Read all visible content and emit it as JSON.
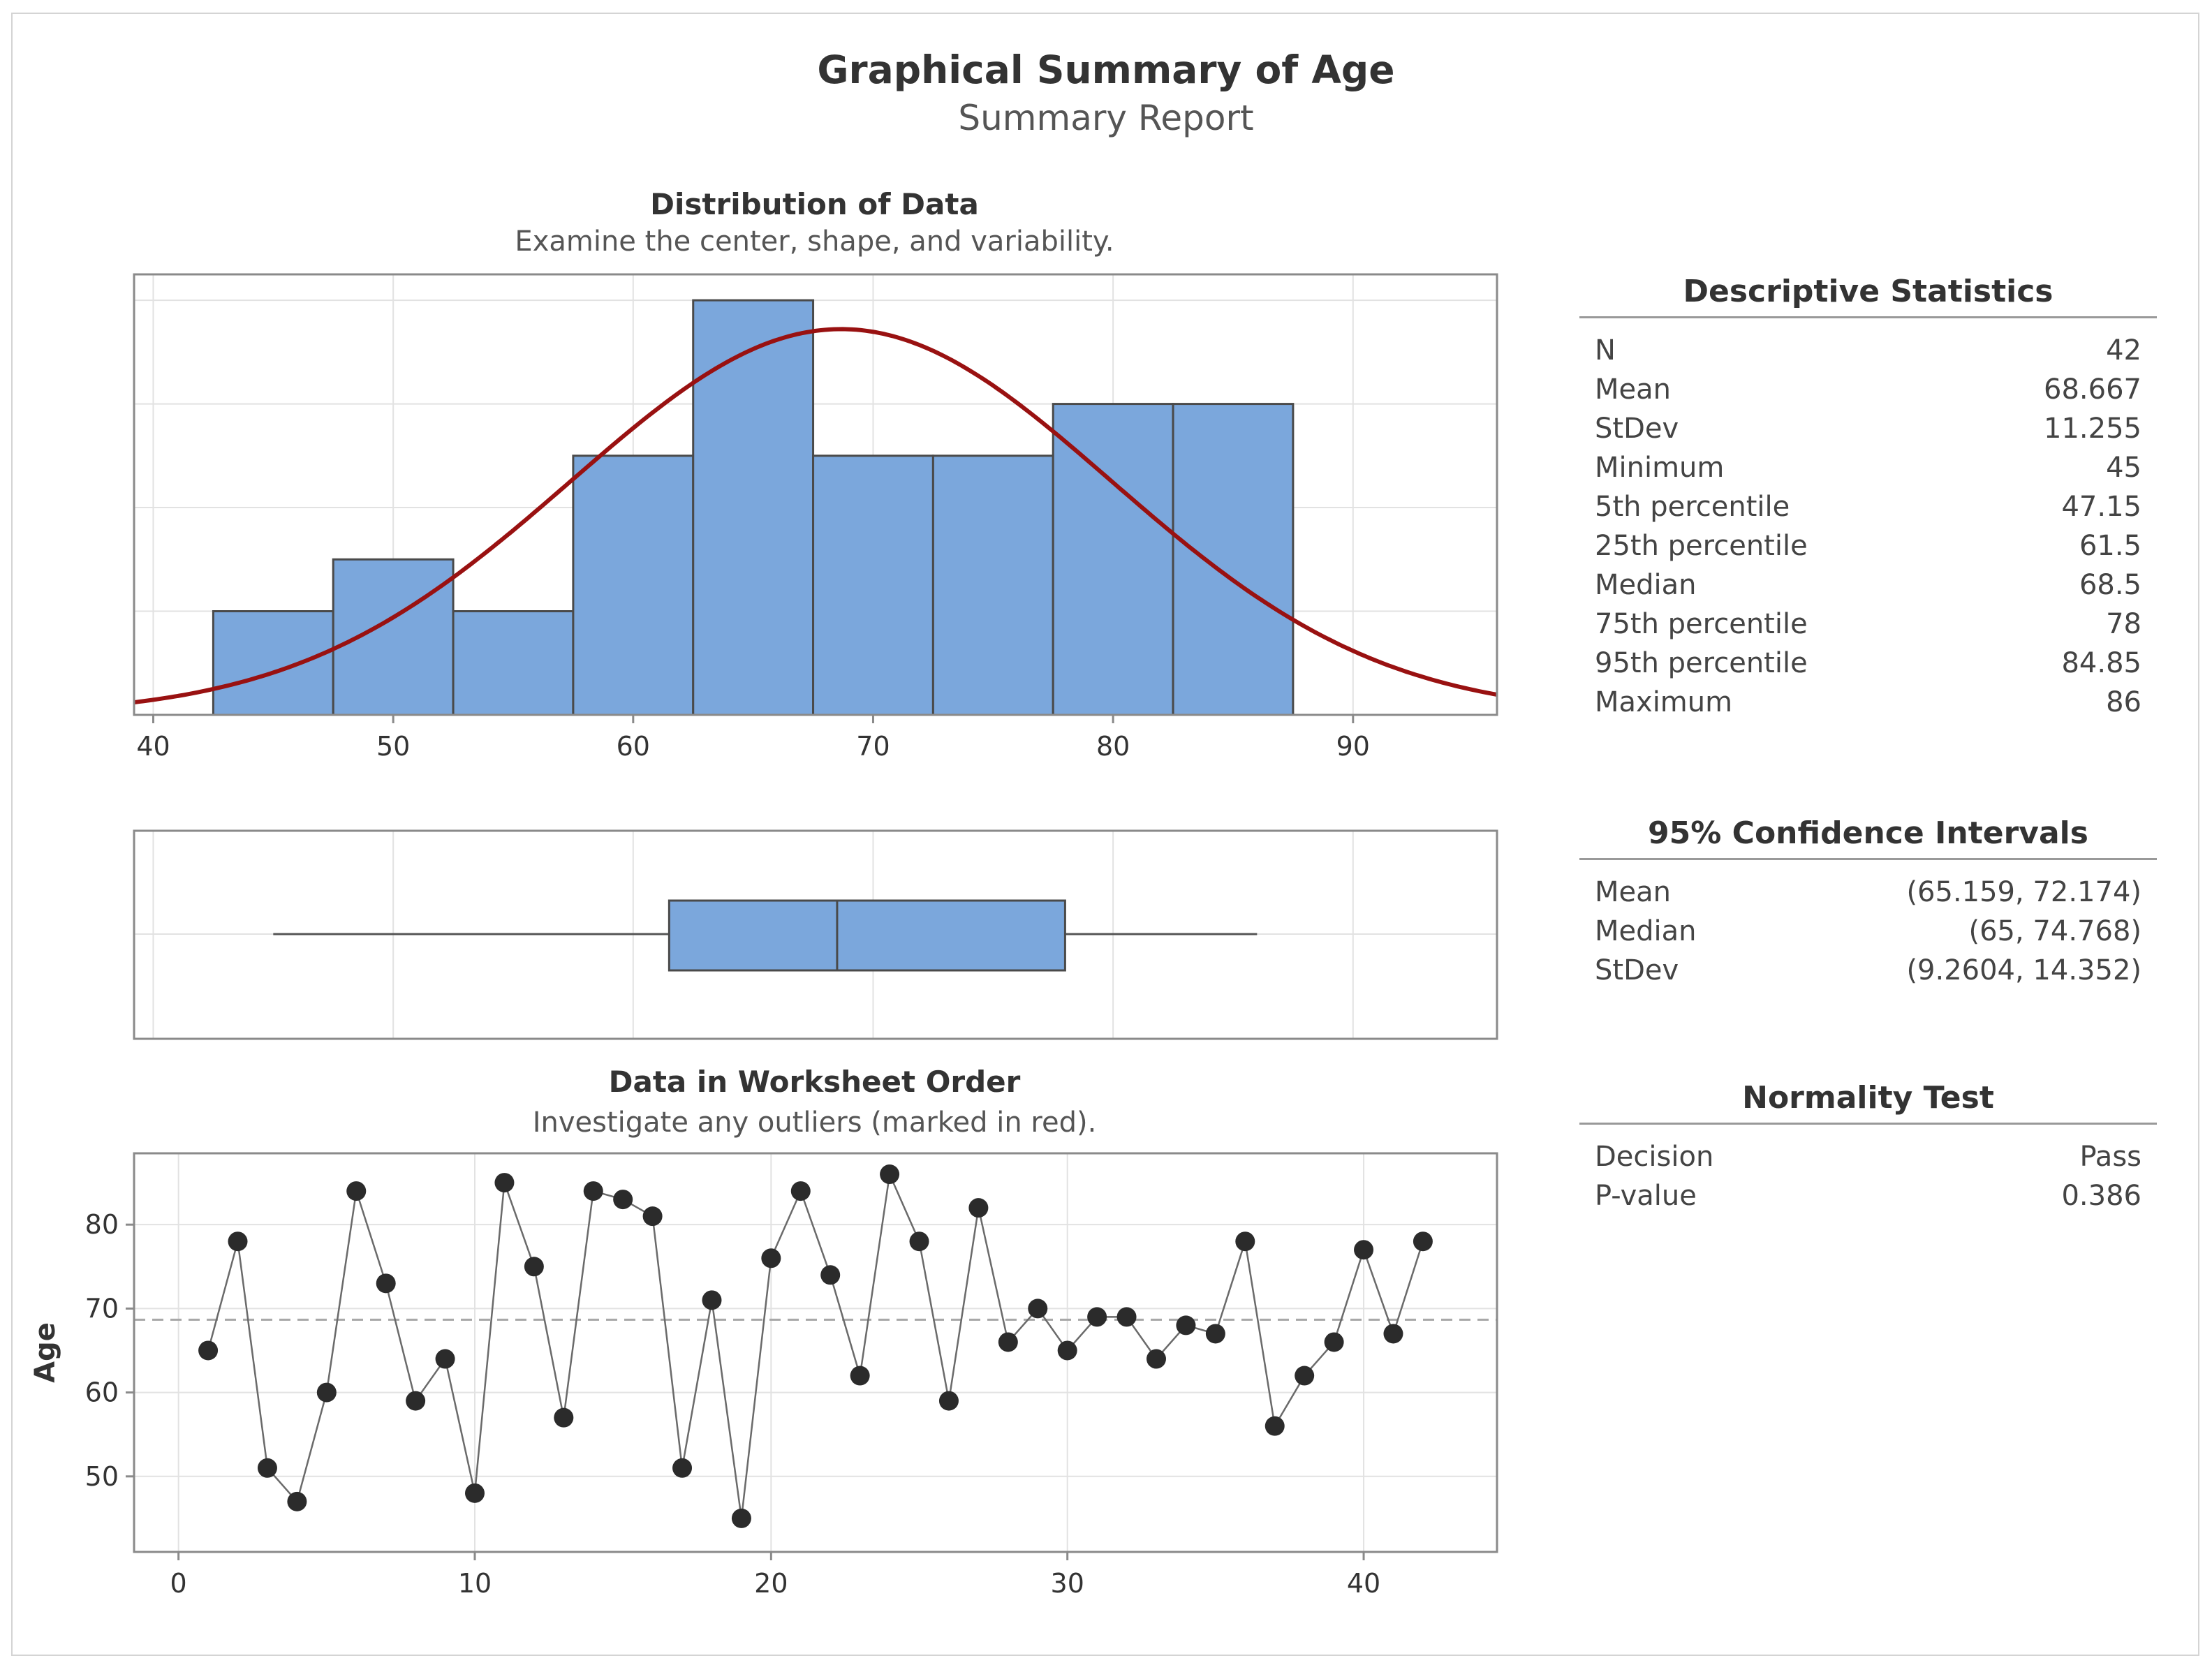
{
  "title": "Graphical Summary of Age",
  "subtitle": "Summary Report",
  "colors": {
    "bar_fill": "#7ba7dc",
    "bar_stroke": "#4a4a4a",
    "curve": "#991111",
    "grid": "#e2e2e2",
    "point": "#2b2b2b",
    "frame": "#8a8a8a"
  },
  "distribution": {
    "title": "Distribution of Data",
    "subtitle": "Examine the center, shape, and variability."
  },
  "worksheet": {
    "title": "Data in Worksheet Order",
    "subtitle": "Investigate any outliers (marked in red)."
  },
  "chart_data": [
    {
      "type": "bar",
      "name": "histogram",
      "bin_edges": [
        42.5,
        47.5,
        52.5,
        57.5,
        62.5,
        67.5,
        72.5,
        77.5,
        82.5,
        87.5
      ],
      "counts": [
        2,
        3,
        2,
        5,
        8,
        5,
        5,
        6,
        6
      ],
      "normal_fit": {
        "mean": 68.667,
        "stdev": 11.255,
        "n": 42,
        "bin_width": 5
      },
      "xlim": [
        39.2,
        96
      ],
      "ylim": [
        0,
        8.5
      ],
      "x_ticks": [
        "40",
        "50",
        "60",
        "70",
        "80",
        "90"
      ],
      "x_tick_values": [
        40,
        50,
        60,
        70,
        80,
        90
      ]
    },
    {
      "type": "boxplot",
      "name": "boxplot",
      "whisker_low": 45,
      "q1": 61.5,
      "median": 68.5,
      "q3": 78,
      "whisker_high": 86,
      "xlim": [
        39.2,
        96
      ]
    },
    {
      "type": "line",
      "name": "worksheet-order",
      "xlabel": "",
      "ylabel": "Age",
      "x": [
        1,
        2,
        3,
        4,
        5,
        6,
        7,
        8,
        9,
        10,
        11,
        12,
        13,
        14,
        15,
        16,
        17,
        18,
        19,
        20,
        21,
        22,
        23,
        24,
        25,
        26,
        27,
        28,
        29,
        30,
        31,
        32,
        33,
        34,
        35,
        36,
        37,
        38,
        39,
        40,
        41,
        42
      ],
      "values": [
        65,
        78,
        51,
        47,
        60,
        84,
        73,
        59,
        64,
        48,
        85,
        75,
        57,
        84,
        83,
        81,
        51,
        71,
        45,
        76,
        84,
        74,
        62,
        86,
        78,
        59,
        82,
        66,
        70,
        65,
        69,
        69,
        64,
        68,
        67,
        78,
        56,
        62,
        66,
        77,
        67,
        78
      ],
      "mean_line": 68.667,
      "xlim": [
        -1.5,
        44.5
      ],
      "ylim": [
        41,
        88.5
      ],
      "x_ticks": [
        "0",
        "10",
        "20",
        "30",
        "40"
      ],
      "x_tick_values": [
        0,
        10,
        20,
        30,
        40
      ],
      "y_ticks": [
        "50",
        "60",
        "70",
        "80"
      ],
      "y_tick_values": [
        50,
        60,
        70,
        80
      ]
    }
  ],
  "descriptive": {
    "title": "Descriptive Statistics",
    "rows": [
      {
        "label": "N",
        "value": "42"
      },
      {
        "label": "Mean",
        "value": "68.667"
      },
      {
        "label": "StDev",
        "value": "11.255"
      },
      {
        "label": "Minimum",
        "value": "45"
      },
      {
        "label": "5th percentile",
        "value": "47.15"
      },
      {
        "label": "25th percentile",
        "value": "61.5"
      },
      {
        "label": "Median",
        "value": "68.5"
      },
      {
        "label": "75th percentile",
        "value": "78"
      },
      {
        "label": "95th percentile",
        "value": "84.85"
      },
      {
        "label": "Maximum",
        "value": "86"
      }
    ]
  },
  "confidence": {
    "title": "95% Confidence Intervals",
    "rows": [
      {
        "label": "Mean",
        "value": "(65.159, 72.174)"
      },
      {
        "label": "Median",
        "value": "(65, 74.768)"
      },
      {
        "label": "StDev",
        "value": "(9.2604, 14.352)"
      }
    ]
  },
  "normality": {
    "title": "Normality Test",
    "rows": [
      {
        "label": "Decision",
        "value": "Pass"
      },
      {
        "label": "P-value",
        "value": "0.386"
      }
    ]
  }
}
